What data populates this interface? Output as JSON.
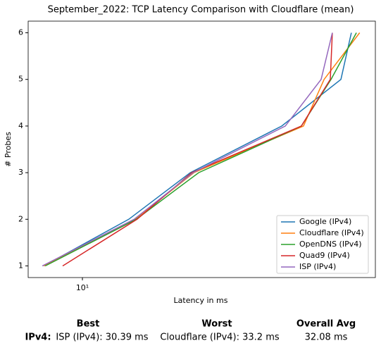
{
  "chart_data": {
    "type": "line",
    "title": "September_2022: TCP Latency Comparison with Cloudflare (mean)",
    "xlabel": "Latency in ms",
    "ylabel": "# Probes",
    "xscale": "log",
    "xlim": [
      6.27,
      124.4
    ],
    "xticks": [
      {
        "value": 10,
        "label": "10¹"
      }
    ],
    "ylim": [
      0.75,
      6.25
    ],
    "yticks": [
      1,
      2,
      3,
      4,
      5,
      6
    ],
    "grid": false,
    "legend": "lower right",
    "series": [
      {
        "name": "Google (IPv4)",
        "color": "#1f77b4",
        "x": [
          7.17,
          14.9,
          25.3,
          55.6,
          92.5,
          101.2
        ],
        "values": [
          1,
          2,
          3,
          4,
          5,
          6
        ]
      },
      {
        "name": "Cloudflare (IPv4)",
        "color": "#ff7f0e",
        "x": [
          7.17,
          15.7,
          26.1,
          67.0,
          80.0,
          108.7
        ],
        "values": [
          1,
          2,
          3,
          4,
          5,
          6
        ]
      },
      {
        "name": "OpenDNS (IPv4)",
        "color": "#2ca02c",
        "x": [
          7.26,
          15.9,
          27.2,
          65.8,
          84.9,
          105.7
        ],
        "values": [
          1,
          2,
          3,
          4,
          5,
          6
        ]
      },
      {
        "name": "Quad9 (IPv4)",
        "color": "#d62728",
        "x": [
          8.44,
          16.0,
          25.6,
          65.8,
          84.4,
          85.9
        ],
        "values": [
          1,
          2,
          3,
          4,
          5,
          6
        ]
      },
      {
        "name": "ISP (IPv4)",
        "color": "#9467bd",
        "x": [
          7.08,
          15.6,
          25.9,
          57.3,
          78.0,
          85.9
        ],
        "values": [
          1,
          2,
          3,
          4,
          5,
          6
        ]
      }
    ]
  },
  "summary": {
    "headers": [
      "Best",
      "Worst",
      "Overall Avg"
    ],
    "row_label": "IPv4:",
    "best": "ISP (IPv4): 30.39 ms",
    "worst": "Cloudflare (IPv4): 33.2 ms",
    "avg": "32.08 ms"
  }
}
